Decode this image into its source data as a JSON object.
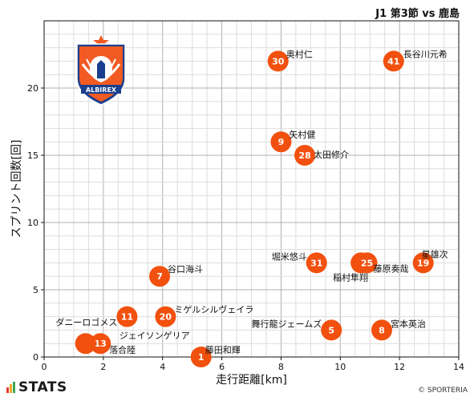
{
  "header": {
    "match": "J1 第3節 vs 鹿島"
  },
  "footer": {
    "brand": "STATS",
    "credit": "© SPORTERIA"
  },
  "colors": {
    "marker": "#f2500f",
    "grid_major": "#b0b0b0",
    "grid_minor": "#dddddd",
    "logo_orange": "#f15a22",
    "logo_blue": "#1b3f8f"
  },
  "chart_data": {
    "type": "scatter",
    "xlabel": "走行距離[km]",
    "ylabel": "スプリント回数[回]",
    "xlim": [
      0,
      14
    ],
    "ylim": [
      0,
      25
    ],
    "x_ticks": [
      "0",
      "2",
      "4",
      "6",
      "8",
      "10",
      "12",
      "14"
    ],
    "y_ticks": [
      "0",
      "5",
      "10",
      "15",
      "20"
    ],
    "grid": true,
    "points": [
      {
        "num": "30",
        "name": "奥村仁",
        "x": 7.9,
        "y": 22
      },
      {
        "num": "41",
        "name": "長谷川元希",
        "x": 11.8,
        "y": 22
      },
      {
        "num": "9",
        "name": "矢村健",
        "x": 8.0,
        "y": 16
      },
      {
        "num": "28",
        "name": "太田修介",
        "x": 8.8,
        "y": 15
      },
      {
        "num": "31",
        "name": "堀米悠斗",
        "x": 9.2,
        "y": 7
      },
      {
        "num": "3",
        "name": "稲村隼翔",
        "x": 10.7,
        "y": 7
      },
      {
        "num": "25",
        "name": "藤原奏哉",
        "x": 10.9,
        "y": 7
      },
      {
        "num": "19",
        "name": "星雄次",
        "x": 12.8,
        "y": 7
      },
      {
        "num": "7",
        "name": "谷口海斗",
        "x": 3.9,
        "y": 6
      },
      {
        "num": "11",
        "name": "ダニーロゴメス",
        "x": 2.8,
        "y": 3
      },
      {
        "num": "20",
        "name": "ミゲルシルヴェイラ",
        "x": 4.1,
        "y": 3
      },
      {
        "num": "5",
        "name": "舞行龍ジェームズ",
        "x": 9.7,
        "y": 2
      },
      {
        "num": "8",
        "name": "宮本英治",
        "x": 11.4,
        "y": 2
      },
      {
        "num": "1",
        "name": "藤田和輝",
        "x": 5.3,
        "y": 0
      },
      {
        "num": "13",
        "name": "落合陸",
        "x": 1.9,
        "y": 1
      },
      {
        "num": "",
        "name": "ジェイソンゲリア",
        "x": 1.4,
        "y": 1
      }
    ]
  }
}
